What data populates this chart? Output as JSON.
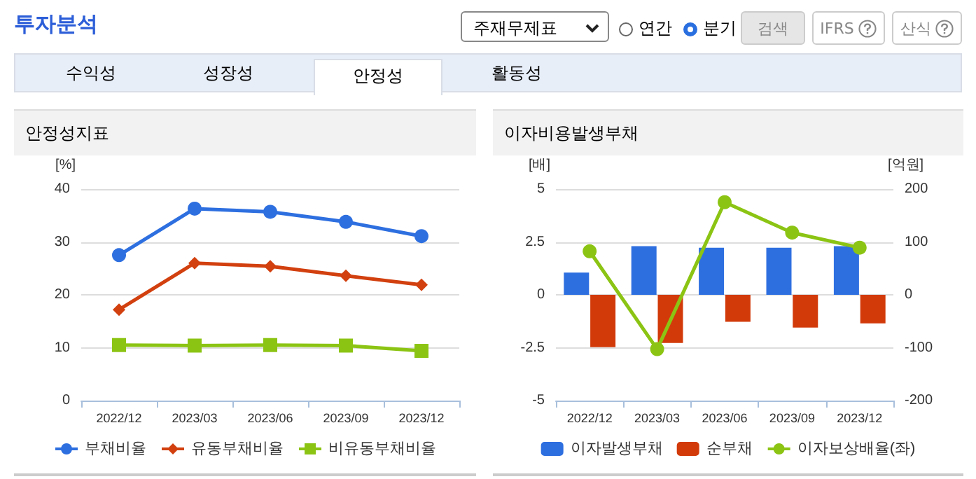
{
  "chart_data": [
    {
      "type": "other",
      "title": "투자분석",
      "annotations": [
        "주재무제표",
        "연간",
        "분기",
        "검색",
        "IFRS",
        "산식",
        "수익성",
        "성장성",
        "안정성",
        "활동성"
      ]
    },
    {
      "type": "line",
      "title": "안정성지표",
      "ylabel": "[%]",
      "categories": [
        "2022/12",
        "2023/03",
        "2023/06",
        "2023/09",
        "2023/12"
      ],
      "series": [
        {
          "name": "부채비율",
          "color": "#2e6fe0",
          "marker": "circle",
          "values": [
            27.5,
            36.3,
            35.7,
            33.8,
            31.1
          ]
        },
        {
          "name": "유동부채비율",
          "color": "#d2400f",
          "marker": "diamond",
          "values": [
            17.2,
            26.0,
            25.4,
            23.6,
            21.9
          ]
        },
        {
          "name": "비유동부채비율",
          "color": "#8cc414",
          "marker": "square",
          "values": [
            10.5,
            10.4,
            10.5,
            10.4,
            9.4
          ]
        }
      ],
      "ylim": [
        0,
        40
      ],
      "yticks": [
        0,
        10,
        20,
        30,
        40
      ],
      "grid": "y",
      "legend": "bottom"
    },
    {
      "type": "bar",
      "title": "이자비용발생부채",
      "ylabel": "[배]",
      "y2label": "[억원]",
      "categories": [
        "2022/12",
        "2023/03",
        "2023/06",
        "2023/09",
        "2023/12"
      ],
      "series": [
        {
          "name": "이자발생부채",
          "color": "#2e6fe0",
          "axis": "y2",
          "values": [
            42,
            92,
            89,
            89,
            92
          ]
        },
        {
          "name": "순부채",
          "color": "#d23a0a",
          "axis": "y2",
          "values": [
            -99,
            -91,
            -51,
            -62,
            -54
          ]
        },
        {
          "name": "이자보상배율(좌)",
          "type": "line",
          "marker": "circle",
          "color": "#8cc414",
          "values": [
            2.06,
            -2.57,
            4.38,
            2.94,
            2.23
          ]
        }
      ],
      "ylim": [
        -5,
        5
      ],
      "yticks": [
        -5,
        -2.5,
        0,
        2.5,
        5
      ],
      "y2lim": [
        -200,
        200
      ],
      "y2ticks": [
        -200,
        -100,
        0,
        100,
        200
      ],
      "grid": "y",
      "legend": "bottom"
    }
  ]
}
